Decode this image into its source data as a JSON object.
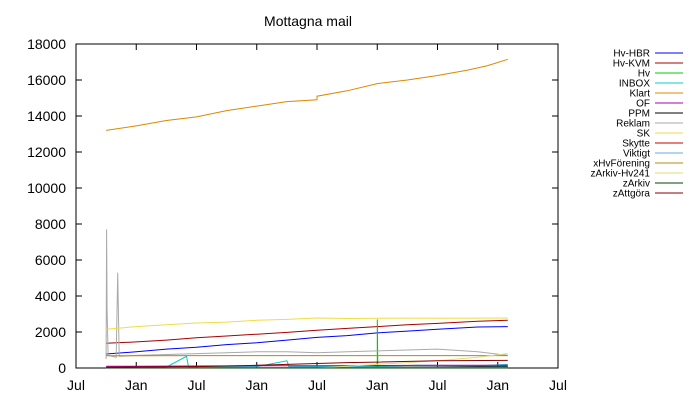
{
  "chart_data": {
    "type": "line",
    "title": "Mottagna mail",
    "xlabel": "",
    "ylabel": "",
    "ylim": [
      0,
      18000
    ],
    "yticks": [
      0,
      2000,
      4000,
      6000,
      8000,
      10000,
      12000,
      14000,
      16000,
      18000
    ],
    "xticks": [
      {
        "label": "Jul",
        "t": 0
      },
      {
        "label": "Jan",
        "t": 6
      },
      {
        "label": "Jul",
        "t": 12
      },
      {
        "label": "Jan",
        "t": 18
      },
      {
        "label": "Jul",
        "t": 24
      },
      {
        "label": "Jan",
        "t": 30
      },
      {
        "label": "Jul",
        "t": 36
      },
      {
        "label": "Jan",
        "t": 42
      },
      {
        "label": "Jul",
        "t": 48
      }
    ],
    "xlim": [
      0,
      48
    ],
    "legend_position": "outside-right",
    "grid": false,
    "series": [
      {
        "name": "Hv-HBR",
        "color": "#0000ff",
        "points": [
          [
            3,
            780
          ],
          [
            6,
            900
          ],
          [
            9,
            1050
          ],
          [
            12,
            1150
          ],
          [
            15,
            1300
          ],
          [
            18,
            1400
          ],
          [
            21,
            1550
          ],
          [
            24,
            1700
          ],
          [
            27,
            1800
          ],
          [
            30,
            1950
          ],
          [
            33,
            2050
          ],
          [
            36,
            2150
          ],
          [
            40,
            2280
          ],
          [
            43,
            2300
          ]
        ]
      },
      {
        "name": "Hv-KVM",
        "color": "#aa0000",
        "points": [
          [
            3,
            1370
          ],
          [
            6,
            1450
          ],
          [
            9,
            1550
          ],
          [
            12,
            1680
          ],
          [
            15,
            1780
          ],
          [
            18,
            1880
          ],
          [
            21,
            1980
          ],
          [
            24,
            2100
          ],
          [
            27,
            2200
          ],
          [
            30,
            2300
          ],
          [
            33,
            2400
          ],
          [
            36,
            2480
          ],
          [
            40,
            2600
          ],
          [
            43,
            2650
          ]
        ]
      },
      {
        "name": "Hv",
        "color": "#00cc00",
        "points": [
          [
            3,
            0
          ],
          [
            27,
            0
          ],
          [
            30,
            0
          ],
          [
            30,
            2700
          ],
          [
            30.05,
            0
          ],
          [
            35,
            0
          ],
          [
            38,
            0
          ],
          [
            38,
            50
          ],
          [
            43,
            60
          ]
        ]
      },
      {
        "name": "INBOX",
        "color": "#00cccc",
        "points": [
          [
            3,
            0
          ],
          [
            6,
            0
          ],
          [
            9,
            50
          ],
          [
            11,
            650
          ],
          [
            11.2,
            60
          ],
          [
            15,
            60
          ],
          [
            18,
            80
          ],
          [
            21,
            400
          ],
          [
            21.2,
            80
          ],
          [
            30,
            100
          ],
          [
            34,
            150
          ],
          [
            40,
            120
          ],
          [
            43,
            200
          ]
        ]
      },
      {
        "name": "Klart",
        "color": "#dd8800",
        "points": [
          [
            3,
            13200
          ],
          [
            6,
            13450
          ],
          [
            9,
            13750
          ],
          [
            12,
            13950
          ],
          [
            15,
            14300
          ],
          [
            18,
            14550
          ],
          [
            21,
            14800
          ],
          [
            24,
            14900
          ],
          [
            24,
            15100
          ],
          [
            27,
            15400
          ],
          [
            30,
            15800
          ],
          [
            33,
            16000
          ],
          [
            36,
            16250
          ],
          [
            39,
            16550
          ],
          [
            41,
            16800
          ],
          [
            43,
            17150
          ]
        ]
      },
      {
        "name": "OF",
        "color": "#aa00aa",
        "points": [
          [
            3,
            100
          ],
          [
            6,
            100
          ],
          [
            12,
            110
          ],
          [
            18,
            120
          ],
          [
            24,
            130
          ],
          [
            30,
            140
          ],
          [
            36,
            150
          ],
          [
            43,
            150
          ]
        ]
      },
      {
        "name": "PPM",
        "color": "#000000",
        "points": [
          [
            3,
            0
          ],
          [
            12,
            0
          ],
          [
            24,
            10
          ],
          [
            30,
            40
          ],
          [
            36,
            60
          ],
          [
            43,
            100
          ]
        ]
      },
      {
        "name": "Reklam",
        "color": "#aaaaaa",
        "points": [
          [
            3,
            500
          ],
          [
            3.05,
            7700
          ],
          [
            3.1,
            3200
          ],
          [
            3.2,
            700
          ],
          [
            4,
            600
          ],
          [
            4.15,
            5300
          ],
          [
            4.3,
            650
          ],
          [
            6,
            700
          ],
          [
            9,
            750
          ],
          [
            12,
            800
          ],
          [
            15,
            850
          ],
          [
            18,
            900
          ],
          [
            21,
            900
          ],
          [
            24,
            850
          ],
          [
            27,
            900
          ],
          [
            30,
            950
          ],
          [
            33,
            1000
          ],
          [
            36,
            1050
          ],
          [
            40,
            900
          ],
          [
            43,
            700
          ]
        ]
      },
      {
        "name": "SK",
        "color": "#eedd44",
        "points": [
          [
            3,
            2150
          ],
          [
            6,
            2300
          ],
          [
            9,
            2400
          ],
          [
            12,
            2500
          ],
          [
            15,
            2550
          ],
          [
            18,
            2650
          ],
          [
            21,
            2700
          ],
          [
            24,
            2780
          ],
          [
            27,
            2750
          ],
          [
            30,
            2760
          ],
          [
            33,
            2770
          ],
          [
            36,
            2760
          ],
          [
            40,
            2770
          ],
          [
            43,
            2780
          ]
        ]
      },
      {
        "name": "Skytte",
        "color": "#cc0000",
        "points": [
          [
            3,
            0
          ],
          [
            12,
            0
          ],
          [
            24,
            0
          ],
          [
            30,
            10
          ],
          [
            36,
            20
          ],
          [
            43,
            30
          ]
        ]
      },
      {
        "name": "Viktigt",
        "color": "#66aadd",
        "points": [
          [
            3,
            0
          ],
          [
            12,
            10
          ],
          [
            24,
            20
          ],
          [
            30,
            30
          ],
          [
            36,
            40
          ],
          [
            43,
            50
          ]
        ]
      },
      {
        "name": "xHvFörening",
        "color": "#bb8800",
        "points": [
          [
            3,
            680
          ],
          [
            6,
            680
          ],
          [
            12,
            690
          ],
          [
            18,
            690
          ],
          [
            24,
            690
          ],
          [
            30,
            690
          ],
          [
            36,
            690
          ],
          [
            43,
            690
          ]
        ]
      },
      {
        "name": "zArkiv-Hv241",
        "color": "#dddd77",
        "points": [
          [
            3,
            0
          ],
          [
            12,
            0
          ],
          [
            24,
            0
          ],
          [
            30,
            200
          ],
          [
            33,
            300
          ],
          [
            36,
            400
          ],
          [
            40,
            600
          ],
          [
            43,
            800
          ]
        ]
      },
      {
        "name": "zArkiv",
        "color": "#004400",
        "points": [
          [
            3,
            0
          ],
          [
            24,
            0
          ],
          [
            30,
            0
          ],
          [
            36,
            0
          ],
          [
            43,
            0
          ]
        ]
      },
      {
        "name": "zAttgöra",
        "color": "#880000",
        "points": [
          [
            3,
            50
          ],
          [
            12,
            80
          ],
          [
            18,
            150
          ],
          [
            24,
            250
          ],
          [
            27,
            300
          ],
          [
            30,
            330
          ],
          [
            36,
            400
          ],
          [
            43,
            420
          ]
        ]
      }
    ]
  }
}
